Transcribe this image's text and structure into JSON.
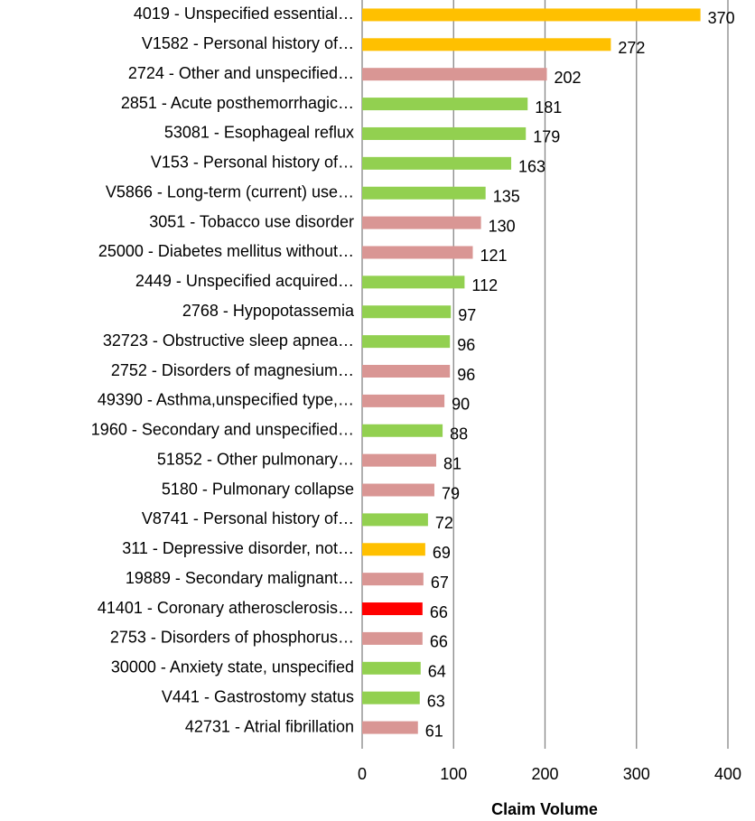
{
  "chart_data": {
    "type": "bar",
    "orientation": "horizontal",
    "x_label": "Claim Volume",
    "categories": [
      "4019 - Unspecified essential…",
      "V1582 - Personal history of…",
      "2724 - Other and unspecified…",
      "2851 - Acute posthemorrhagic…",
      "53081 - Esophageal reflux",
      "V153 - Personal history of…",
      "V5866 - Long-term (current) use…",
      "3051 - Tobacco use disorder",
      "25000 - Diabetes mellitus without…",
      "2449 - Unspecified acquired…",
      "2768 - Hypopotassemia",
      "32723 - Obstructive sleep apnea…",
      "2752 - Disorders of magnesium…",
      "49390 - Asthma,unspecified type,…",
      "1960 - Secondary and unspecified…",
      "51852 - Other pulmonary…",
      "5180 - Pulmonary collapse",
      "V8741 - Personal history of…",
      "311 - Depressive disorder, not…",
      "19889 - Secondary malignant…",
      "41401 - Coronary atherosclerosis…",
      "2753 - Disorders of phosphorus…",
      "30000 - Anxiety state, unspecified",
      "V441 - Gastrostomy status",
      "42731 - Atrial fibrillation"
    ],
    "values": [
      370,
      272,
      202,
      181,
      179,
      163,
      135,
      130,
      121,
      112,
      97,
      96,
      96,
      90,
      88,
      81,
      79,
      72,
      69,
      67,
      66,
      66,
      64,
      63,
      61
    ],
    "colors": [
      "#FFC000",
      "#FFC000",
      "#D99694",
      "#92D050",
      "#92D050",
      "#92D050",
      "#92D050",
      "#D99694",
      "#D99694",
      "#92D050",
      "#92D050",
      "#92D050",
      "#D99694",
      "#D99694",
      "#92D050",
      "#D99694",
      "#D99694",
      "#92D050",
      "#FFC000",
      "#D99694",
      "#FF0000",
      "#D99694",
      "#92D050",
      "#92D050",
      "#D99694"
    ],
    "xlim": [
      0,
      400
    ],
    "xticks": [
      0,
      100,
      200,
      300,
      400
    ],
    "grid": true
  }
}
